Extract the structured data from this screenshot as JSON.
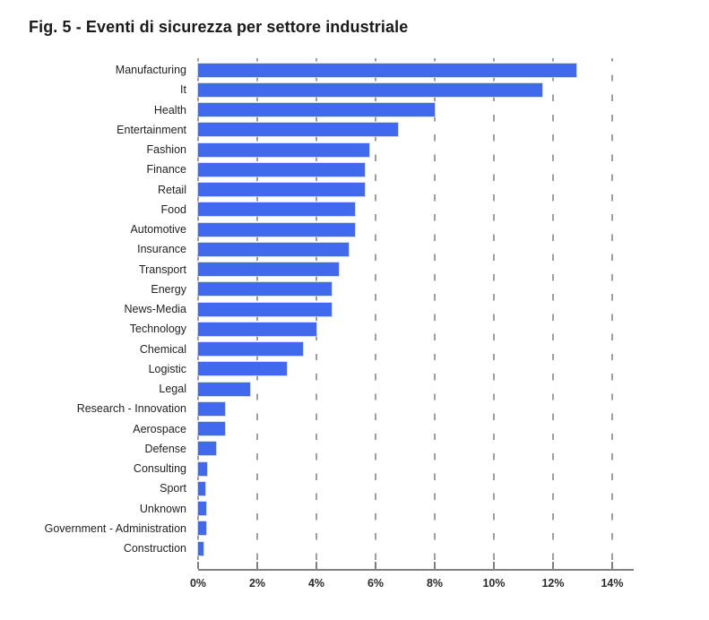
{
  "title": "Fig. 5 - Eventi di sicurezza per settore industriale",
  "chart_data": {
    "type": "bar",
    "orientation": "horizontal",
    "title": "Fig. 5 - Eventi di sicurezza per settore industriale",
    "xlabel": "",
    "ylabel": "",
    "unit": "%",
    "xlim": [
      0,
      14.73
    ],
    "xticks": [
      "0%",
      "2%",
      "4%",
      "6%",
      "8%",
      "10%",
      "12%",
      "14%"
    ],
    "xtick_values": [
      0,
      2,
      4,
      6,
      8,
      10,
      12,
      14
    ],
    "grid": "vertical-dashed",
    "legend": "none",
    "bar_color": "#4169ee",
    "gridline_color": "#9e9e9e",
    "axis_color": "#808080",
    "categories": [
      "Manufacturing",
      "It",
      "Health",
      "Entertainment",
      "Fashion",
      "Finance",
      "Retail",
      "Food",
      "Automotive",
      "Insurance",
      "Transport",
      "Energy",
      "News-Media",
      "Technology",
      "Chemical",
      "Logistic",
      "Legal",
      "Research - Innovation",
      "Aerospace",
      "Defense",
      "Consulting",
      "Sport",
      "Unknown",
      "Government - Administration",
      "Construction"
    ],
    "values": [
      12.8,
      11.65,
      8.0,
      6.75,
      5.8,
      5.65,
      5.65,
      5.3,
      5.3,
      5.1,
      4.75,
      4.5,
      4.5,
      4.0,
      3.55,
      3.0,
      1.75,
      0.9,
      0.9,
      0.6,
      0.3,
      0.25,
      0.28,
      0.28,
      0.17
    ]
  }
}
